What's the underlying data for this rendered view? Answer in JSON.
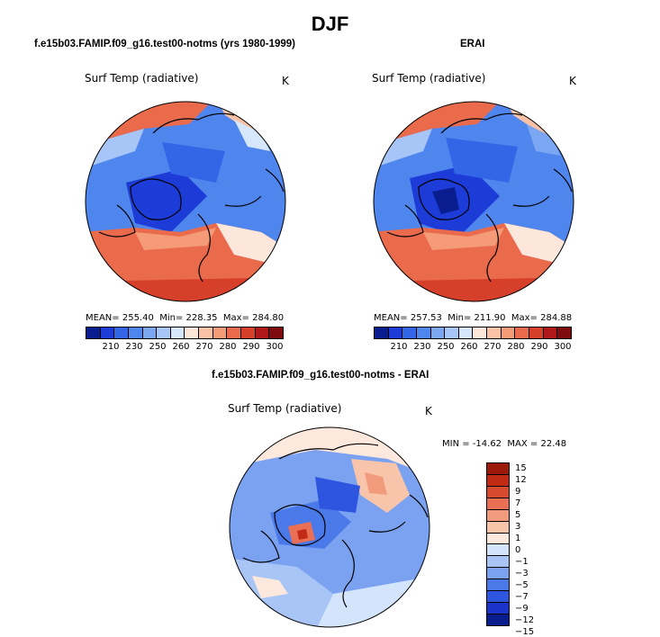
{
  "figure_title": "DJF",
  "colors": {
    "abs_scale": [
      "#0a1d8f",
      "#1d3bd6",
      "#3366e6",
      "#4f86ee",
      "#7aa6f2",
      "#a7c6f7",
      "#d6e6fb",
      "#fde6da",
      "#f9c2a6",
      "#f59b78",
      "#ea6a4c",
      "#d6402b",
      "#b0171b",
      "#7d0b10"
    ],
    "diff_scale": [
      "#0a1d8f",
      "#1a33c8",
      "#2d55e0",
      "#4a79ea",
      "#7aa2f0",
      "#a8c5f6",
      "#d3e4fb",
      "#fde8de",
      "#f8c4aa",
      "#f29a7c",
      "#e96f55",
      "#d84a2f",
      "#c12a15",
      "#9c1a0a"
    ]
  },
  "chart_data": [
    {
      "type": "heatmap",
      "projection": "north-polar-stereographic",
      "panel_title": "f.e15b03.FAMIP.f09_g16.test00-notms (yrs 1980-1999)",
      "variable_label": "Surf Temp (radiative)",
      "units": "K",
      "stats": {
        "mean_label": "MEAN=",
        "mean": "255.40",
        "min_label": "Min=",
        "min": "228.35",
        "max_label": "Max=",
        "max": "284.80"
      },
      "colorbar": {
        "ticks": [
          "210",
          "230",
          "250",
          "260",
          "270",
          "280",
          "290",
          "300"
        ],
        "levels": 14
      }
    },
    {
      "type": "heatmap",
      "projection": "north-polar-stereographic",
      "panel_title": "ERAI",
      "variable_label": "Surf Temp (radiative)",
      "units": "K",
      "stats": {
        "mean_label": "MEAN=",
        "mean": "257.53",
        "min_label": "Min=",
        "min": "211.90",
        "max_label": "Max=",
        "max": "284.88"
      },
      "colorbar": {
        "ticks": [
          "210",
          "230",
          "250",
          "260",
          "270",
          "280",
          "290",
          "300"
        ],
        "levels": 14
      }
    },
    {
      "type": "heatmap",
      "projection": "north-polar-stereographic",
      "panel_title": "f.e15b03.FAMIP.f09_g16.test00-notms - ERAI",
      "variable_label": "Surf Temp (radiative)",
      "units": "K",
      "stats": {
        "min_label": "MIN =",
        "min": "-14.62",
        "max_label": "MAX =",
        "max": "22.48"
      },
      "colorbar": {
        "ticks": [
          "15",
          "12",
          "9",
          "7",
          "5",
          "3",
          "1",
          "0",
          "−1",
          "−3",
          "−5",
          "−7",
          "−9",
          "−12",
          "−15"
        ],
        "levels": 14
      }
    }
  ]
}
